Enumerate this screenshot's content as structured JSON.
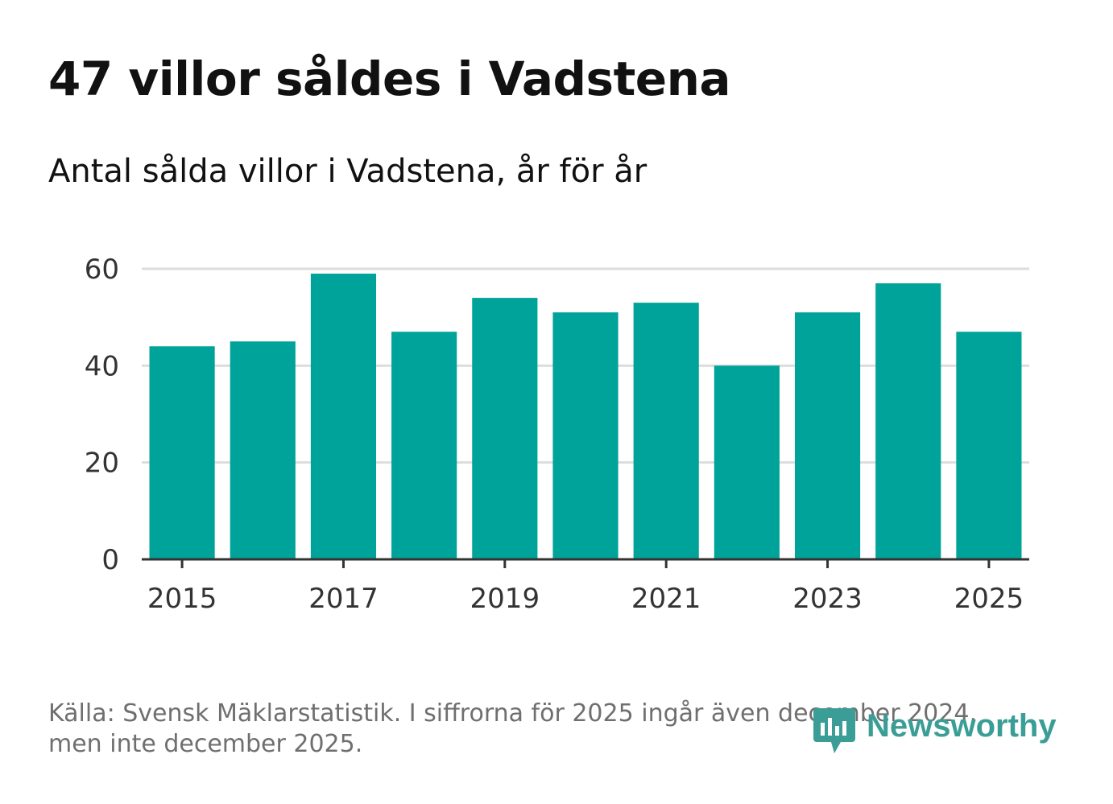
{
  "title": "47 villor såldes i Vadstena",
  "subtitle": "Antal sålda villor i Vadstena, år för år",
  "footer": {
    "line1": "Källa: Svensk Mäklarstatistik. I siffrorna för 2025 ingår även december 2024,",
    "line2": "men inte december 2025."
  },
  "brand": {
    "name": "Newsworthy",
    "icon": "newsworthy-logo-icon"
  },
  "colors": {
    "bar": "#00a39a",
    "grid": "#dddddd",
    "axis": "#333333",
    "tick_text": "#333333",
    "brand": "#3a9e97"
  },
  "chart_data": {
    "type": "bar",
    "title": "47 villor såldes i Vadstena",
    "subtitle": "Antal sålda villor i Vadstena, år för år",
    "xlabel": "",
    "ylabel": "",
    "categories": [
      2015,
      2016,
      2017,
      2018,
      2019,
      2020,
      2021,
      2022,
      2023,
      2024,
      2025
    ],
    "values": [
      44,
      45,
      59,
      47,
      54,
      51,
      53,
      40,
      51,
      57,
      47
    ],
    "ylim": [
      0,
      60
    ],
    "yticks": [
      0,
      20,
      40,
      60
    ],
    "xticks": [
      "2015",
      "2017",
      "2019",
      "2021",
      "2023",
      "2025"
    ],
    "grid": true,
    "legend": "none"
  }
}
